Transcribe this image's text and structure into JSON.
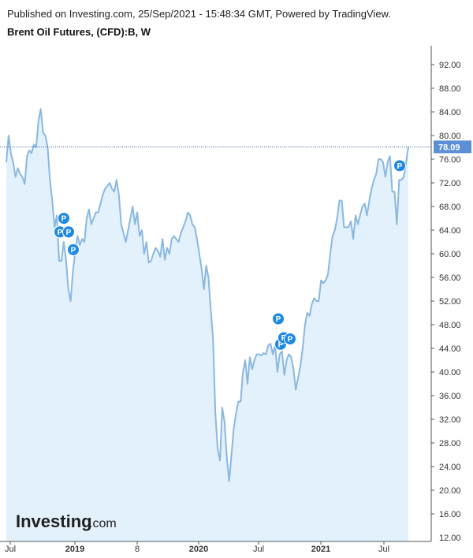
{
  "header": {
    "published": "Published on Investing.com, 25/Sep/2021 - 15:48:34 GMT, Powered by TradingView.",
    "title": "Brent Oil Futures, (CFD):B, W"
  },
  "logo": {
    "brand": "Investing",
    "suffix": ".com"
  },
  "colors": {
    "line": "#8ab8e0",
    "fill": "#e3f1fc",
    "marker": "#1e88e5",
    "last_price_bg": "#5b8fd6",
    "grid_axis": "#555555"
  },
  "chart_data": {
    "type": "area",
    "x_axis": {
      "labels": [
        "Jul",
        "2019",
        "8",
        "2020",
        "Jul",
        "2021",
        "Jul"
      ],
      "bold_labels": [
        "2019",
        "2020",
        "2021"
      ]
    },
    "y_axis": {
      "ylim": [
        12,
        95
      ],
      "ticks": [
        16,
        20,
        24,
        28,
        32,
        36,
        40,
        44,
        48,
        52,
        56,
        60,
        64,
        68,
        72,
        76,
        80,
        84,
        88,
        92
      ],
      "tick_labels": [
        "16.00",
        "20.00",
        "24.00",
        "28.00",
        "32.00",
        "36.00",
        "40.00",
        "44.00",
        "48.00",
        "52.00",
        "56.00",
        "60.00",
        "64.00",
        "68.00",
        "72.00",
        "76.00",
        "80.00",
        "84.00",
        "88.00",
        "92.00"
      ],
      "bottom_partial_label": "12.00",
      "position": "right"
    },
    "last_price": {
      "value": 78.09,
      "label": "78.09"
    },
    "series": [
      {
        "values": [
          75.5,
          80.0,
          77.0,
          75.5,
          73.0,
          74.5,
          73.5,
          73.0,
          71.8,
          76.5,
          77.5,
          77.0,
          78.5,
          78.0,
          82.5,
          84.5,
          80.5,
          80.0,
          78.0,
          72.5,
          69.0,
          64.5,
          66.5,
          58.8,
          58.8,
          62.0,
          59.0,
          54.0,
          52.0,
          57.0,
          60.5,
          63.0,
          61.5,
          62.5,
          62.0,
          66.0,
          67.5,
          65.0,
          66.0,
          67.0,
          67.0,
          68.5,
          70.0,
          71.0,
          71.5,
          72.0,
          71.0,
          70.5,
          72.5,
          70.0,
          65.0,
          63.5,
          62.0,
          64.0,
          66.0,
          68.0,
          65.0,
          67.0,
          63.0,
          64.0,
          60.0,
          62.0,
          58.5,
          58.8,
          60.0,
          61.0,
          60.5,
          59.5,
          62.5,
          59.0,
          61.0,
          60.0,
          62.5,
          63.0,
          62.5,
          62.0,
          63.5,
          64.5,
          65.5,
          67.0,
          66.5,
          65.0,
          64.5,
          62.5,
          60.0,
          57.5,
          54.0,
          58.0,
          56.0,
          50.5,
          45.5,
          33.0,
          27.0,
          25.0,
          34.0,
          31.5,
          25.5,
          21.5,
          26.0,
          30.5,
          33.0,
          35.0,
          35.0,
          40.0,
          42.0,
          38.0,
          42.5,
          40.5,
          42.0,
          43.0,
          43.0,
          42.8,
          43.2,
          43.0,
          44.5,
          44.8,
          43.0,
          44.5,
          40.0,
          43.0,
          43.5,
          39.5,
          42.0,
          43.0,
          42.5,
          40.5,
          37.0,
          39.0,
          41.0,
          44.0,
          48.0,
          50.0,
          49.5,
          51.5,
          52.5,
          52.0,
          52.0,
          55.5,
          55.0,
          55.5,
          56.5,
          60.0,
          63.0,
          64.0,
          66.0,
          69.0,
          69.0,
          64.5,
          64.5,
          64.5,
          65.5,
          62.5,
          66.5,
          65.0,
          66.5,
          68.0,
          68.5,
          66.5,
          69.0,
          71.0,
          72.5,
          73.5,
          76.0,
          76.0,
          75.5,
          73.0,
          75.5,
          76.5,
          70.5,
          70.5,
          65.0,
          72.5,
          72.5,
          73.0,
          75.5,
          78.09
        ]
      }
    ],
    "markers": [
      {
        "label": "P",
        "value": 66.0
      },
      {
        "label": "P",
        "value": 63.7
      },
      {
        "label": "P",
        "value": 63.7
      },
      {
        "label": "P",
        "value": 60.7
      },
      {
        "label": "P",
        "value": 49.0
      },
      {
        "label": "P",
        "value": 44.7
      },
      {
        "label": "P",
        "value": 45.8
      },
      {
        "label": "P",
        "value": 45.6
      },
      {
        "label": "P",
        "value": 74.9
      }
    ],
    "grid": false,
    "legend": "none"
  }
}
